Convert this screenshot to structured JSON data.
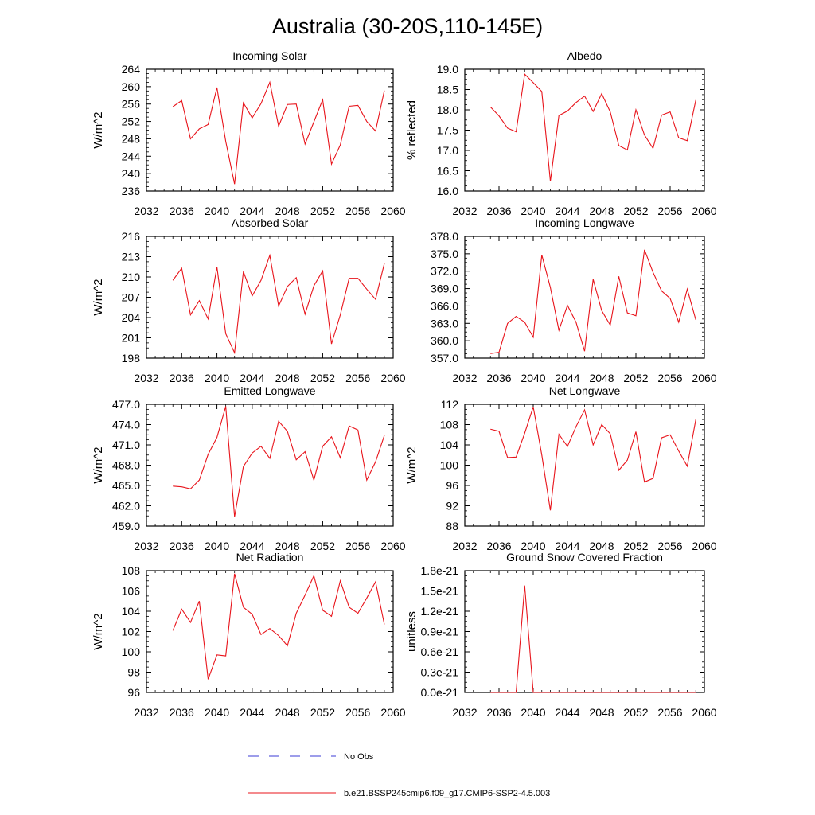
{
  "figure": {
    "title": "Australia (30-20S,110-145E)",
    "legend": [
      {
        "label": "No Obs",
        "style": "dashed",
        "color": "#3b3bd6"
      },
      {
        "label": "b.e21.BSSP245cmip6.f09_g17.CMIP6-SSP2-4.5.003",
        "style": "solid",
        "color": "#e8141b"
      }
    ]
  },
  "chart_data": [
    {
      "type": "line",
      "title": "Incoming Solar",
      "ylabel": "W/m^2",
      "xlim": [
        2032,
        2060
      ],
      "xticks": [
        "2032",
        "2036",
        "2040",
        "2044",
        "2048",
        "2052",
        "2056",
        "2060"
      ],
      "ylim": [
        236,
        264
      ],
      "yticks": [
        "236",
        "240",
        "244",
        "248",
        "252",
        "256",
        "260",
        "264"
      ],
      "x": [
        2035,
        2036,
        2037,
        2038,
        2039,
        2040,
        2041,
        2042,
        2043,
        2044,
        2045,
        2046,
        2047,
        2048,
        2049,
        2050,
        2051,
        2052,
        2053,
        2054,
        2055,
        2056,
        2057,
        2058,
        2059
      ],
      "series": [
        {
          "name": "b.e21.BSSP245cmip6.f09_g17.CMIP6-SSP2-4.5.003",
          "color": "#e8141b",
          "values": [
            255.4,
            256.8,
            248.0,
            250.3,
            251.3,
            259.8,
            247.4,
            237.6,
            256.3,
            252.8,
            256.1,
            261.0,
            250.9,
            255.9,
            256.0,
            246.8,
            251.9,
            257.0,
            242.2,
            246.6,
            255.5,
            255.7,
            252.0,
            249.8,
            259.1
          ]
        }
      ]
    },
    {
      "type": "line",
      "title": "Albedo",
      "ylabel": "% reflected",
      "xlim": [
        2032,
        2060
      ],
      "xticks": [
        "2032",
        "2036",
        "2040",
        "2044",
        "2048",
        "2052",
        "2056",
        "2060"
      ],
      "ylim": [
        16.0,
        19.0
      ],
      "yticks": [
        "16.0",
        "16.5",
        "17.0",
        "17.5",
        "18.0",
        "18.5",
        "19.0"
      ],
      "x": [
        2035,
        2036,
        2037,
        2038,
        2039,
        2040,
        2041,
        2042,
        2043,
        2044,
        2045,
        2046,
        2047,
        2048,
        2049,
        2050,
        2051,
        2052,
        2053,
        2054,
        2055,
        2056,
        2057,
        2058,
        2059
      ],
      "series": [
        {
          "name": "b.e21.BSSP245cmip6.f09_g17.CMIP6-SSP2-4.5.003",
          "color": "#e8141b",
          "values": [
            18.07,
            17.85,
            17.55,
            17.46,
            18.88,
            18.67,
            18.45,
            16.24,
            17.86,
            17.97,
            18.18,
            18.34,
            17.96,
            18.4,
            17.95,
            17.12,
            17.01,
            18.0,
            17.38,
            17.05,
            17.87,
            17.95,
            17.31,
            17.24,
            18.24
          ]
        }
      ]
    },
    {
      "type": "line",
      "title": "Absorbed Solar",
      "ylabel": "W/m^2",
      "xlim": [
        2032,
        2060
      ],
      "xticks": [
        "2032",
        "2036",
        "2040",
        "2044",
        "2048",
        "2052",
        "2056",
        "2060"
      ],
      "ylim": [
        198,
        216
      ],
      "yticks": [
        "198",
        "201",
        "204",
        "207",
        "210",
        "213",
        "216"
      ],
      "x": [
        2035,
        2036,
        2037,
        2038,
        2039,
        2040,
        2041,
        2042,
        2043,
        2044,
        2045,
        2046,
        2047,
        2048,
        2049,
        2050,
        2051,
        2052,
        2053,
        2054,
        2055,
        2056,
        2057,
        2058,
        2059
      ],
      "series": [
        {
          "name": "b.e21.BSSP245cmip6.f09_g17.CMIP6-SSP2-4.5.003",
          "color": "#e8141b",
          "values": [
            209.5,
            211.3,
            204.4,
            206.5,
            203.8,
            211.5,
            201.6,
            198.8,
            210.8,
            207.2,
            209.5,
            213.2,
            205.7,
            208.6,
            209.9,
            204.5,
            208.7,
            210.9,
            200.1,
            204.4,
            209.8,
            209.8,
            208.2,
            206.7,
            212.0
          ]
        }
      ]
    },
    {
      "type": "line",
      "title": "Incoming Longwave",
      "ylabel": "",
      "xlim": [
        2032,
        2060
      ],
      "xticks": [
        "2032",
        "2036",
        "2040",
        "2044",
        "2048",
        "2052",
        "2056",
        "2060"
      ],
      "ylim": [
        357.0,
        378.0
      ],
      "yticks": [
        "357.0",
        "360.0",
        "363.0",
        "366.0",
        "369.0",
        "372.0",
        "375.0",
        "378.0"
      ],
      "x": [
        2035,
        2036,
        2037,
        2038,
        2039,
        2040,
        2041,
        2042,
        2043,
        2044,
        2045,
        2046,
        2047,
        2048,
        2049,
        2050,
        2051,
        2052,
        2053,
        2054,
        2055,
        2056,
        2057,
        2058,
        2059
      ],
      "series": [
        {
          "name": "b.e21.BSSP245cmip6.f09_g17.CMIP6-SSP2-4.5.003",
          "color": "#e8141b",
          "values": [
            357.8,
            358.0,
            363.0,
            364.2,
            363.2,
            360.6,
            374.8,
            369.2,
            361.8,
            366.1,
            363.2,
            358.2,
            370.6,
            365.2,
            362.7,
            371.1,
            364.8,
            364.3,
            375.7,
            371.8,
            368.6,
            367.3,
            363.2,
            368.9,
            363.6
          ]
        }
      ]
    },
    {
      "type": "line",
      "title": "Emitted Longwave",
      "ylabel": "W/m^2",
      "xlim": [
        2032,
        2060
      ],
      "xticks": [
        "2032",
        "2036",
        "2040",
        "2044",
        "2048",
        "2052",
        "2056",
        "2060"
      ],
      "ylim": [
        459.0,
        477.0
      ],
      "yticks": [
        "459.0",
        "462.0",
        "465.0",
        "468.0",
        "471.0",
        "474.0",
        "477.0"
      ],
      "x": [
        2035,
        2036,
        2037,
        2038,
        2039,
        2040,
        2041,
        2042,
        2043,
        2044,
        2045,
        2046,
        2047,
        2048,
        2049,
        2050,
        2051,
        2052,
        2053,
        2054,
        2055,
        2056,
        2057,
        2058,
        2059
      ],
      "series": [
        {
          "name": "b.e21.BSSP245cmip6.f09_g17.CMIP6-SSP2-4.5.003",
          "color": "#e8141b",
          "values": [
            464.9,
            464.8,
            464.5,
            465.8,
            469.6,
            472.1,
            476.7,
            460.4,
            467.8,
            469.8,
            470.8,
            469.0,
            474.5,
            473.0,
            468.8,
            470.0,
            465.8,
            470.8,
            472.2,
            469.1,
            473.8,
            473.2,
            465.8,
            468.5,
            472.4
          ]
        }
      ]
    },
    {
      "type": "line",
      "title": "Net Longwave",
      "ylabel": "W/m^2",
      "xlim": [
        2032,
        2060
      ],
      "xticks": [
        "2032",
        "2036",
        "2040",
        "2044",
        "2048",
        "2052",
        "2056",
        "2060"
      ],
      "ylim": [
        88,
        112
      ],
      "yticks": [
        "88",
        "92",
        "96",
        "100",
        "104",
        "108",
        "112"
      ],
      "x": [
        2035,
        2036,
        2037,
        2038,
        2039,
        2040,
        2041,
        2042,
        2043,
        2044,
        2045,
        2046,
        2047,
        2048,
        2049,
        2050,
        2051,
        2052,
        2053,
        2054,
        2055,
        2056,
        2057,
        2058,
        2059
      ],
      "series": [
        {
          "name": "b.e21.BSSP245cmip6.f09_g17.CMIP6-SSP2-4.5.003",
          "color": "#e8141b",
          "values": [
            107.1,
            106.7,
            101.5,
            101.6,
            106.3,
            111.5,
            102.0,
            91.1,
            106.1,
            103.7,
            107.6,
            110.9,
            104.0,
            108.0,
            106.2,
            99.0,
            101.0,
            106.6,
            96.7,
            97.4,
            105.4,
            106.0,
            102.8,
            99.8,
            109.0
          ]
        }
      ]
    },
    {
      "type": "line",
      "title": "Net Radiation",
      "ylabel": "W/m^2",
      "xlim": [
        2032,
        2060
      ],
      "xticks": [
        "2032",
        "2036",
        "2040",
        "2044",
        "2048",
        "2052",
        "2056",
        "2060"
      ],
      "ylim": [
        96,
        108
      ],
      "yticks": [
        "96",
        "98",
        "100",
        "102",
        "104",
        "106",
        "108"
      ],
      "x": [
        2035,
        2036,
        2037,
        2038,
        2039,
        2040,
        2041,
        2042,
        2043,
        2044,
        2045,
        2046,
        2047,
        2048,
        2049,
        2050,
        2051,
        2052,
        2053,
        2054,
        2055,
        2056,
        2057,
        2058,
        2059
      ],
      "series": [
        {
          "name": "b.e21.BSSP245cmip6.f09_g17.CMIP6-SSP2-4.5.003",
          "color": "#e8141b",
          "values": [
            102.1,
            104.2,
            102.9,
            105.0,
            97.3,
            99.7,
            99.6,
            107.7,
            104.4,
            103.7,
            101.7,
            102.3,
            101.6,
            100.6,
            103.8,
            105.6,
            107.5,
            104.1,
            103.5,
            107.0,
            104.4,
            103.8,
            105.3,
            106.9,
            102.7
          ]
        }
      ]
    },
    {
      "type": "line",
      "title": "Ground Snow Covered Fraction",
      "ylabel": "unitless",
      "xlim": [
        2032,
        2060
      ],
      "xticks": [
        "2032",
        "2036",
        "2040",
        "2044",
        "2048",
        "2052",
        "2056",
        "2060"
      ],
      "ylim": [
        0.0,
        1.8
      ],
      "yticks": [
        "0.0e-21",
        "0.3e-21",
        "0.6e-21",
        "0.9e-21",
        "1.2e-21",
        "1.5e-21",
        "1.8e-21"
      ],
      "x": [
        2035,
        2036,
        2037,
        2038,
        2039,
        2040,
        2041,
        2042,
        2043,
        2044,
        2045,
        2046,
        2047,
        2048,
        2049,
        2050,
        2051,
        2052,
        2053,
        2054,
        2055,
        2056,
        2057,
        2058,
        2059
      ],
      "series": [
        {
          "name": "b.e21.BSSP245cmip6.f09_g17.CMIP6-SSP2-4.5.003",
          "color": "#e8141b",
          "values": [
            0,
            0,
            0,
            0,
            1.58,
            0,
            0,
            0,
            0,
            0,
            0,
            0,
            0,
            0,
            0,
            0,
            0,
            0,
            0,
            0,
            0,
            0,
            0,
            0,
            0
          ]
        }
      ]
    }
  ]
}
